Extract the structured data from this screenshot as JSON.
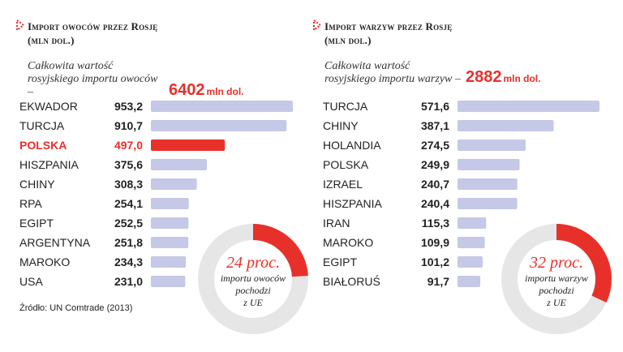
{
  "chart_data": [
    {
      "type": "bar",
      "title": "Import owoców przez Rosję",
      "subtitle": "(mln dol.)",
      "total_label": "Całkowita wartość rosyjskiego importu owoców –",
      "total_value": "6402",
      "total_unit": "mln dol.",
      "categories": [
        "EKWADOR",
        "TURCJA",
        "POLSKA",
        "HISZPANIA",
        "CHINY",
        "RPA",
        "EGIPT",
        "ARGENTYNA",
        "MAROKO",
        "USA"
      ],
      "values": [
        953.2,
        910.7,
        497.0,
        375.6,
        308.3,
        254.1,
        252.5,
        251.8,
        234.3,
        231.0
      ],
      "value_labels": [
        "953,2",
        "910,7",
        "497,0",
        "375,6",
        "308,3",
        "254,1",
        "252,5",
        "251,8",
        "234,3",
        "231,0"
      ],
      "highlight": "POLSKA",
      "bar_color": "#c5c8e6",
      "highlight_color": "#e8302a",
      "donut": {
        "percent": 24,
        "big_text": "24 proc.",
        "lines": [
          "importu owoców",
          "pochodzi",
          "z UE"
        ]
      }
    },
    {
      "type": "bar",
      "title": "Import warzyw przez Rosję",
      "subtitle": "(mln dol.)",
      "total_label": "Całkowita wartość rosyjskiego importu warzyw –",
      "total_value": "2882",
      "total_unit": "mln dol.",
      "categories": [
        "TURCJA",
        "CHINY",
        "HOLANDIA",
        "POLSKA",
        "IZRAEL",
        "HISZPANIA",
        "IRAN",
        "MAROKO",
        "EGIPT",
        "BIAŁORUŚ"
      ],
      "values": [
        571.6,
        387.1,
        274.5,
        249.9,
        240.7,
        240.4,
        115.3,
        109.9,
        101.2,
        91.7
      ],
      "value_labels": [
        "571,6",
        "387,1",
        "274,5",
        "249,9",
        "240,7",
        "240,4",
        "115,3",
        "109,9",
        "101,2",
        "91,7"
      ],
      "highlight": "",
      "bar_color": "#c5c8e6",
      "highlight_color": "#e8302a",
      "donut": {
        "percent": 32,
        "big_text": "32 proc.",
        "lines": [
          "importu warzyw",
          "pochodzi",
          "z UE"
        ]
      }
    }
  ],
  "source": "Źródło: UN Comtrade (2013)",
  "colors": {
    "accent": "#e8302a",
    "bar": "#c5c8e6",
    "donut_track": "#e6e6e6"
  }
}
